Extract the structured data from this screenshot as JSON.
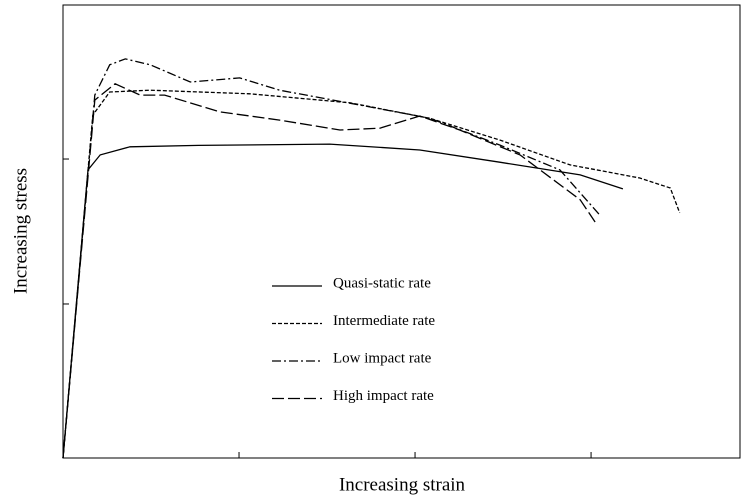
{
  "chart_data": {
    "type": "line",
    "xlabel": "Increasing strain",
    "ylabel": "Increasing stress",
    "xlim": [
      0,
      100
    ],
    "ylim": [
      0,
      100
    ],
    "xticks": [
      26,
      52,
      78
    ],
    "yticks": [
      34,
      66
    ],
    "series": [
      {
        "name": "Quasi-static rate",
        "color": "#000000",
        "style": "solid",
        "x": [
          0,
          3.7,
          5.5,
          9.9,
          20,
          39.4,
          52.7,
          64.5,
          76.4,
          82.7
        ],
        "values": [
          0,
          63.6,
          66.9,
          68.7,
          69,
          69.3,
          68,
          65.3,
          62.5,
          59.4
        ]
      },
      {
        "name": "Intermediate rate",
        "color": "#000000",
        "style": "dashed",
        "x": [
          0,
          4.4,
          6.9,
          12.9,
          27.6,
          42.4,
          54.2,
          64.5,
          74.9,
          85.2,
          89.7,
          91.1
        ],
        "values": [
          0,
          75.7,
          80.8,
          81.2,
          80.4,
          78.4,
          75,
          70.2,
          64.7,
          61.8,
          59.6,
          54.1
        ]
      },
      {
        "name": "Low impact rate",
        "color": "#000000",
        "style": "dashdot",
        "x": [
          0,
          4.7,
          6.9,
          9.2,
          12.9,
          18.8,
          26.1,
          32,
          43.9,
          54.2,
          64.5,
          73.4,
          79.3
        ],
        "values": [
          0,
          80.1,
          86.8,
          88.1,
          86.8,
          83,
          83.9,
          81.2,
          77.9,
          75,
          69.1,
          63.6,
          53.6
        ]
      },
      {
        "name": "High impact rate",
        "color": "#000000",
        "style": "longdash",
        "x": [
          0,
          4.7,
          7.7,
          11.4,
          15,
          23.2,
          32,
          40.9,
          46.8,
          52.7,
          58.6,
          67.5,
          76.4,
          78.6
        ],
        "values": [
          0,
          79,
          82.6,
          80.1,
          80.1,
          76.4,
          74.6,
          72.4,
          72.8,
          75.5,
          72.4,
          66.9,
          57,
          52.1
        ]
      }
    ]
  }
}
